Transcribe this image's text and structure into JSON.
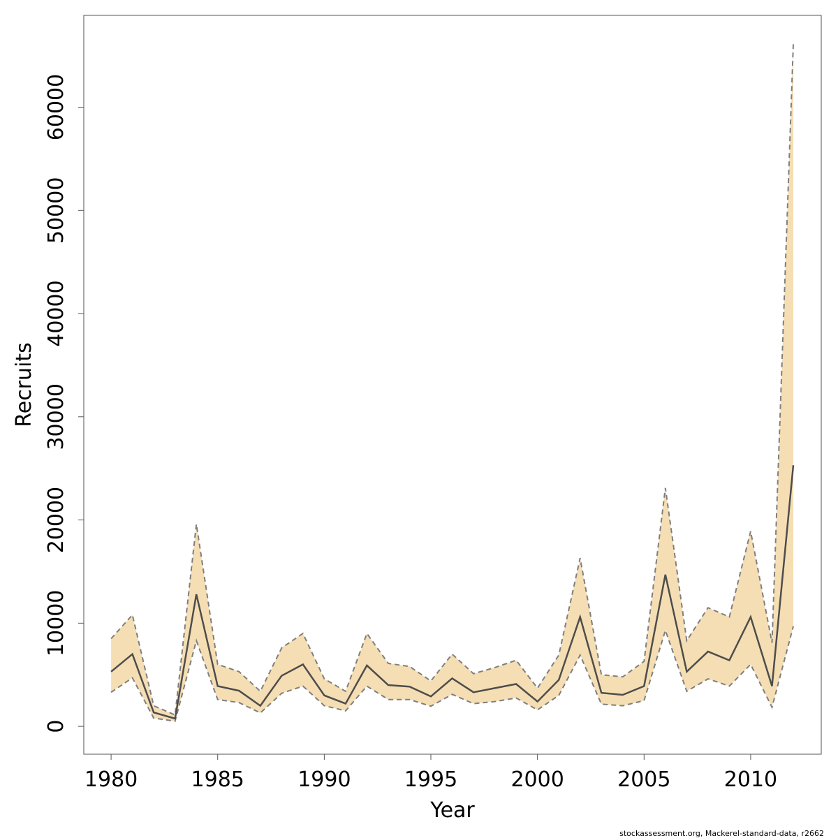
{
  "chart_data": {
    "type": "line",
    "x_label": "Year",
    "y_label": "Recruits",
    "footnote": "stockassessment.org, Mackerel-standard-data, r2662",
    "x": [
      1980,
      1981,
      1982,
      1983,
      1984,
      1985,
      1986,
      1987,
      1988,
      1989,
      1990,
      1991,
      1992,
      1993,
      1994,
      1995,
      1996,
      1997,
      1998,
      1999,
      2000,
      2001,
      2002,
      2003,
      2004,
      2005,
      2006,
      2007,
      2008,
      2009,
      2010,
      2011,
      2012
    ],
    "values": [
      5300,
      7000,
      1350,
      750,
      12800,
      3900,
      3450,
      2000,
      4900,
      6000,
      3000,
      2200,
      5900,
      4000,
      3850,
      2900,
      4650,
      3300,
      3700,
      4100,
      2400,
      4500,
      10600,
      3250,
      3050,
      3900,
      14700,
      5300,
      7250,
      6400,
      10600,
      3900,
      25300
    ],
    "lower": [
      3300,
      4700,
      800,
      500,
      8300,
      2600,
      2300,
      1300,
      3200,
      3900,
      2000,
      1500,
      3900,
      2600,
      2600,
      1950,
      3100,
      2200,
      2400,
      2750,
      1600,
      3000,
      6900,
      2150,
      2000,
      2500,
      9300,
      3400,
      4600,
      3900,
      6000,
      1850,
      9700
    ],
    "upper": [
      8500,
      10800,
      2000,
      1100,
      19600,
      6000,
      5300,
      3400,
      7600,
      9000,
      4600,
      3400,
      9000,
      6100,
      5800,
      4400,
      7000,
      5100,
      5700,
      6400,
      3700,
      6900,
      16300,
      5000,
      4800,
      6300,
      23100,
      8300,
      11500,
      10600,
      18900,
      8100,
      66100
    ],
    "color": "#4d4d4d",
    "bound_color": "#7f7f7f",
    "band_color": "#f5deb3",
    "xlim": [
      1978.72,
      2013.31
    ],
    "ylim": [
      -2700,
      68900
    ],
    "xticks": [
      1980,
      1985,
      1990,
      1995,
      2000,
      2005,
      2010
    ],
    "yticks": [
      0,
      10000,
      20000,
      30000,
      40000,
      50000,
      60000
    ],
    "grid": false
  }
}
